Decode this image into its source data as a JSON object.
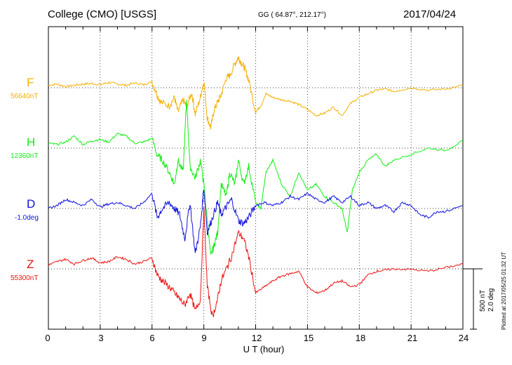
{
  "header": {
    "station": "College (CMO)  [USGS]",
    "coords": "GG ( 64.87°, 212.17°)",
    "date": "2017/04/24"
  },
  "colors": {
    "F": "#f5b000",
    "H": "#11ee11",
    "D": "#1111dd",
    "Z": "#ee1111"
  },
  "components": [
    {
      "key": "F",
      "label": "F",
      "baseline": "56640nT"
    },
    {
      "key": "H",
      "label": "H",
      "baseline": "12360nT"
    },
    {
      "key": "D",
      "label": "D",
      "baseline": "-1.0deg"
    },
    {
      "key": "Z",
      "label": "Z",
      "baseline": "55300nT"
    }
  ],
  "scale": {
    "nT": "500 nT",
    "deg": "2.0 deg"
  },
  "plotted": "Plotted at 2017/05/25 01:32 UT",
  "chart_data": {
    "type": "line",
    "xlabel": "U T (hour)",
    "xlim": [
      0,
      24
    ],
    "xticks": [
      "0",
      "3",
      "6",
      "9",
      "12",
      "15",
      "18",
      "21",
      "24"
    ],
    "grid": true,
    "series": [
      {
        "name": "F",
        "x": [
          0,
          0.5,
          1,
          1.5,
          2,
          2.5,
          3,
          3.5,
          4,
          4.5,
          5,
          5.5,
          6,
          6.3,
          6.5,
          7,
          7.3,
          7.5,
          7.8,
          8,
          8.3,
          8.5,
          8.8,
          9,
          9.2,
          9.4,
          9.6,
          9.8,
          10,
          10.3,
          10.5,
          10.8,
          11,
          11.2,
          11.4,
          11.6,
          12,
          12.3,
          12.6,
          13,
          13.5,
          14,
          14.5,
          15,
          15.5,
          16,
          16.5,
          17,
          17.5,
          18,
          18.5,
          19,
          19.5,
          20,
          21,
          22,
          23,
          24
        ],
        "y": [
          20,
          30,
          10,
          20,
          30,
          35,
          25,
          45,
          30,
          20,
          40,
          25,
          50,
          -60,
          -120,
          -150,
          -80,
          -200,
          -100,
          -160,
          -40,
          -220,
          -80,
          60,
          -250,
          -330,
          -180,
          -120,
          -60,
          80,
          100,
          200,
          250,
          200,
          150,
          60,
          -200,
          -150,
          -50,
          -80,
          -100,
          -110,
          -140,
          -180,
          -230,
          -210,
          -160,
          -230,
          -130,
          -80,
          -50,
          -20,
          -10,
          -30,
          0,
          -20,
          -10,
          20
        ]
      },
      {
        "name": "H",
        "x": [
          0,
          0.5,
          1,
          1.5,
          2,
          2.5,
          3,
          3.5,
          4,
          4.5,
          5,
          5.5,
          6,
          6.3,
          6.6,
          7,
          7.3,
          7.5,
          7.8,
          8,
          8.2,
          8.5,
          8.8,
          9,
          9.2,
          9.4,
          9.6,
          9.8,
          10,
          10.3,
          10.5,
          10.8,
          11,
          11.3,
          11.6,
          12,
          12.3,
          12.6,
          13,
          13.5,
          14,
          14.5,
          15,
          15.5,
          16,
          16.5,
          17,
          17.3,
          17.6,
          18,
          18.5,
          19,
          19.5,
          20,
          21,
          22,
          23,
          24
        ],
        "y": [
          40,
          30,
          50,
          100,
          30,
          60,
          70,
          50,
          120,
          100,
          40,
          50,
          80,
          -60,
          -100,
          -200,
          -300,
          -100,
          -200,
          400,
          -150,
          -250,
          -100,
          -300,
          -600,
          -900,
          -800,
          -700,
          -300,
          -400,
          -200,
          -300,
          -100,
          -300,
          -150,
          -450,
          -500,
          -200,
          -100,
          -300,
          -400,
          -200,
          -350,
          -300,
          -400,
          -450,
          -500,
          -700,
          -350,
          -200,
          -100,
          -50,
          -150,
          -100,
          -50,
          0,
          -20,
          60
        ]
      },
      {
        "name": "D",
        "x": [
          0,
          0.5,
          1,
          1.5,
          2,
          2.5,
          3,
          3.5,
          4,
          4.5,
          5,
          5.5,
          6,
          6.3,
          6.6,
          7,
          7.3,
          7.6,
          7.9,
          8.2,
          8.5,
          8.8,
          9,
          9.2,
          9.5,
          9.8,
          10,
          10.3,
          10.6,
          11,
          11.3,
          11.6,
          12,
          12.5,
          13,
          13.5,
          14,
          14.5,
          15,
          15.5,
          16,
          16.5,
          17,
          17.5,
          18,
          18.5,
          19,
          19.5,
          20,
          20.5,
          21,
          21.5,
          22,
          22.5,
          23,
          24
        ],
        "y": [
          0,
          0.1,
          0.3,
          0.2,
          0.1,
          0.3,
          0.05,
          0.15,
          0.2,
          0.1,
          0,
          0.2,
          0.5,
          -0.3,
          0,
          0.2,
          0,
          -0.2,
          -1.0,
          0.2,
          -1.5,
          -0.6,
          0.7,
          -0.8,
          -0.3,
          0.2,
          -0.2,
          0.05,
          0.3,
          -0.4,
          -0.5,
          -0.3,
          0.1,
          0.2,
          0.1,
          0.2,
          0.4,
          0.3,
          0.5,
          0.3,
          0.2,
          0.4,
          0.2,
          0.4,
          0.1,
          0.2,
          0,
          0.1,
          -0.1,
          0.2,
          0.1,
          -0.2,
          -0.3,
          -0.1,
          -0.1,
          0.1
        ]
      },
      {
        "name": "Z",
        "x": [
          0,
          0.5,
          1,
          1.5,
          2,
          2.5,
          3,
          3.5,
          4,
          4.5,
          5,
          5.5,
          6,
          6.3,
          6.6,
          7,
          7.3,
          7.6,
          7.9,
          8.2,
          8.5,
          8.8,
          9,
          9.2,
          9.5,
          9.8,
          10,
          10.3,
          10.6,
          11,
          11.3,
          11.6,
          12,
          12.5,
          13,
          13.5,
          14,
          14.5,
          15,
          15.5,
          16,
          16.5,
          17,
          17.5,
          18,
          18.5,
          19,
          19.5,
          20,
          21,
          22,
          23,
          24
        ],
        "y": [
          30,
          60,
          80,
          40,
          70,
          90,
          50,
          60,
          100,
          80,
          40,
          60,
          90,
          -50,
          -100,
          -150,
          -200,
          -250,
          -300,
          -200,
          -350,
          -250,
          500,
          -150,
          -400,
          -250,
          -100,
          0,
          100,
          300,
          250,
          100,
          -200,
          -150,
          -100,
          -60,
          -40,
          -20,
          -150,
          -200,
          -180,
          -120,
          -100,
          -150,
          -130,
          -50,
          -20,
          -10,
          0,
          -5,
          -20,
          10,
          40
        ]
      }
    ]
  }
}
